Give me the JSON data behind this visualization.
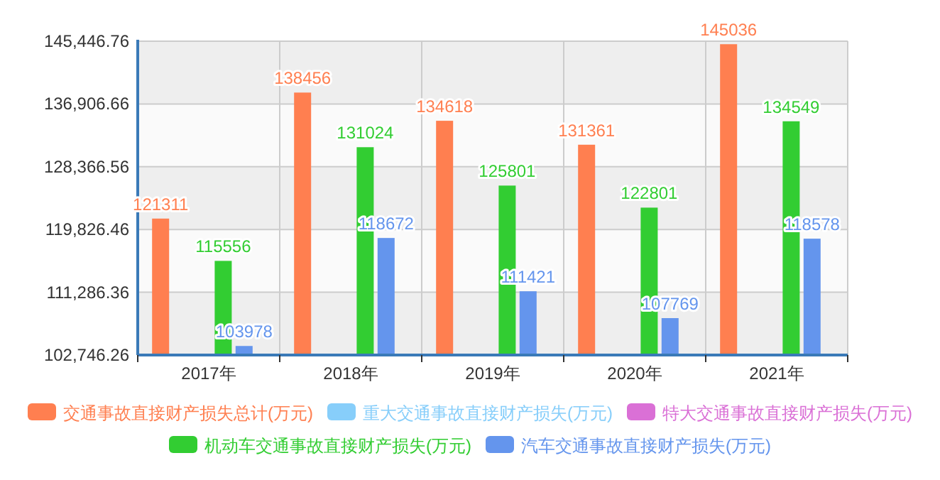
{
  "chart_data": {
    "type": "bar",
    "categories": [
      "2017年",
      "2018年",
      "2019年",
      "2020年",
      "2021年"
    ],
    "series": [
      {
        "name": "交通事故直接财产损失总计(万元)",
        "color": "#ff7f50",
        "values": [
          121311,
          138456,
          134618,
          131361,
          145036
        ]
      },
      {
        "name": "重大交通事故直接财产损失(万元)",
        "color": "#87cefa",
        "values": [
          null,
          null,
          null,
          null,
          null
        ]
      },
      {
        "name": "特大交通事故直接财产损失(万元)",
        "color": "#da70d6",
        "values": [
          null,
          null,
          null,
          null,
          null
        ]
      },
      {
        "name": "机动车交通事故直接财产损失(万元)",
        "color": "#32cd32",
        "values": [
          115556,
          131024,
          125801,
          122801,
          134549
        ]
      },
      {
        "name": "汽车交通事故直接财产损失(万元)",
        "color": "#6495ed",
        "values": [
          103978,
          118672,
          111421,
          107769,
          118578
        ]
      }
    ],
    "ylim": [
      102746.26,
      145446.76
    ],
    "yticks": [
      {
        "value": 102746.26,
        "label": "102,746.26"
      },
      {
        "value": 111286.36,
        "label": "111,286.36"
      },
      {
        "value": 119826.46,
        "label": "119,826.46"
      },
      {
        "value": 128366.56,
        "label": "128,366.56"
      },
      {
        "value": 136906.66,
        "label": "136,906.66"
      },
      {
        "value": 145446.76,
        "label": "145,446.76"
      }
    ],
    "grid": true,
    "legend": "bottom",
    "data_labels": true
  }
}
